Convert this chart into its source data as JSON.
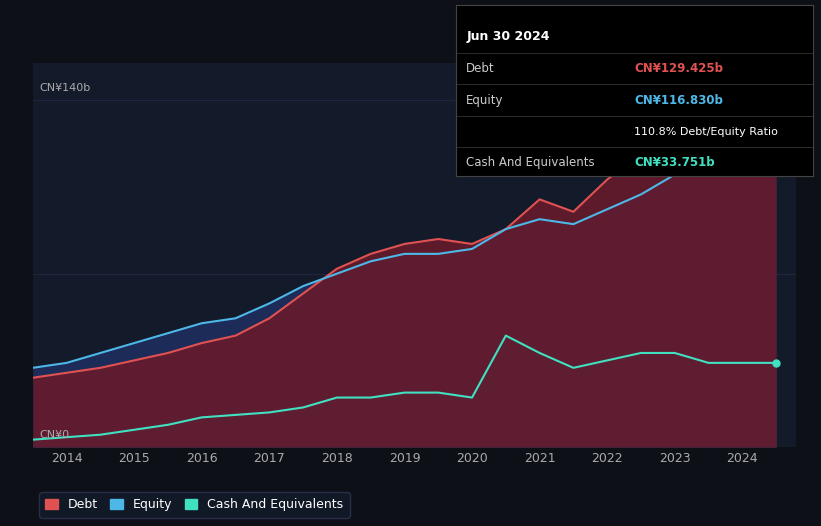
{
  "background_color": "#0d1117",
  "plot_bg_color": "#131a2a",
  "title": "Jun 30 2024",
  "tooltip": {
    "debt": "CN¥129.425b",
    "equity": "CN¥116.830b",
    "ratio": "110.8% Debt/Equity Ratio",
    "cash": "CN¥33.751b"
  },
  "ylabel_top": "CN¥140b",
  "ylabel_bottom": "CN¥0",
  "debt_color": "#e05252",
  "equity_color": "#4db8e8",
  "cash_color": "#40e0c0",
  "debt_fill_color": "#6b1a2a",
  "equity_fill_color": "#1e2d5e",
  "cash_fill_color": "#1a4a45",
  "years": [
    2013.5,
    2014.0,
    2014.5,
    2015.0,
    2015.5,
    2016.0,
    2016.5,
    2017.0,
    2017.5,
    2018.0,
    2018.5,
    2019.0,
    2019.5,
    2020.0,
    2020.5,
    2021.0,
    2021.5,
    2022.0,
    2022.5,
    2023.0,
    2023.5,
    2024.0,
    2024.5
  ],
  "debt": [
    28,
    30,
    32,
    35,
    38,
    42,
    45,
    52,
    62,
    72,
    78,
    82,
    84,
    82,
    88,
    100,
    95,
    108,
    118,
    140,
    128,
    135,
    129
  ],
  "equity": [
    32,
    34,
    38,
    42,
    46,
    50,
    52,
    58,
    65,
    70,
    75,
    78,
    78,
    80,
    88,
    92,
    90,
    96,
    102,
    110,
    112,
    115,
    117
  ],
  "cash": [
    3,
    4,
    5,
    7,
    9,
    12,
    13,
    14,
    16,
    20,
    20,
    22,
    22,
    20,
    45,
    38,
    32,
    35,
    38,
    38,
    34,
    34,
    34
  ],
  "xlim": [
    2013.5,
    2024.8
  ],
  "ylim": [
    0,
    155
  ],
  "xticks": [
    2014,
    2015,
    2016,
    2017,
    2018,
    2019,
    2020,
    2021,
    2022,
    2023,
    2024
  ],
  "legend_items": [
    "Debt",
    "Equity",
    "Cash And Equivalents"
  ]
}
